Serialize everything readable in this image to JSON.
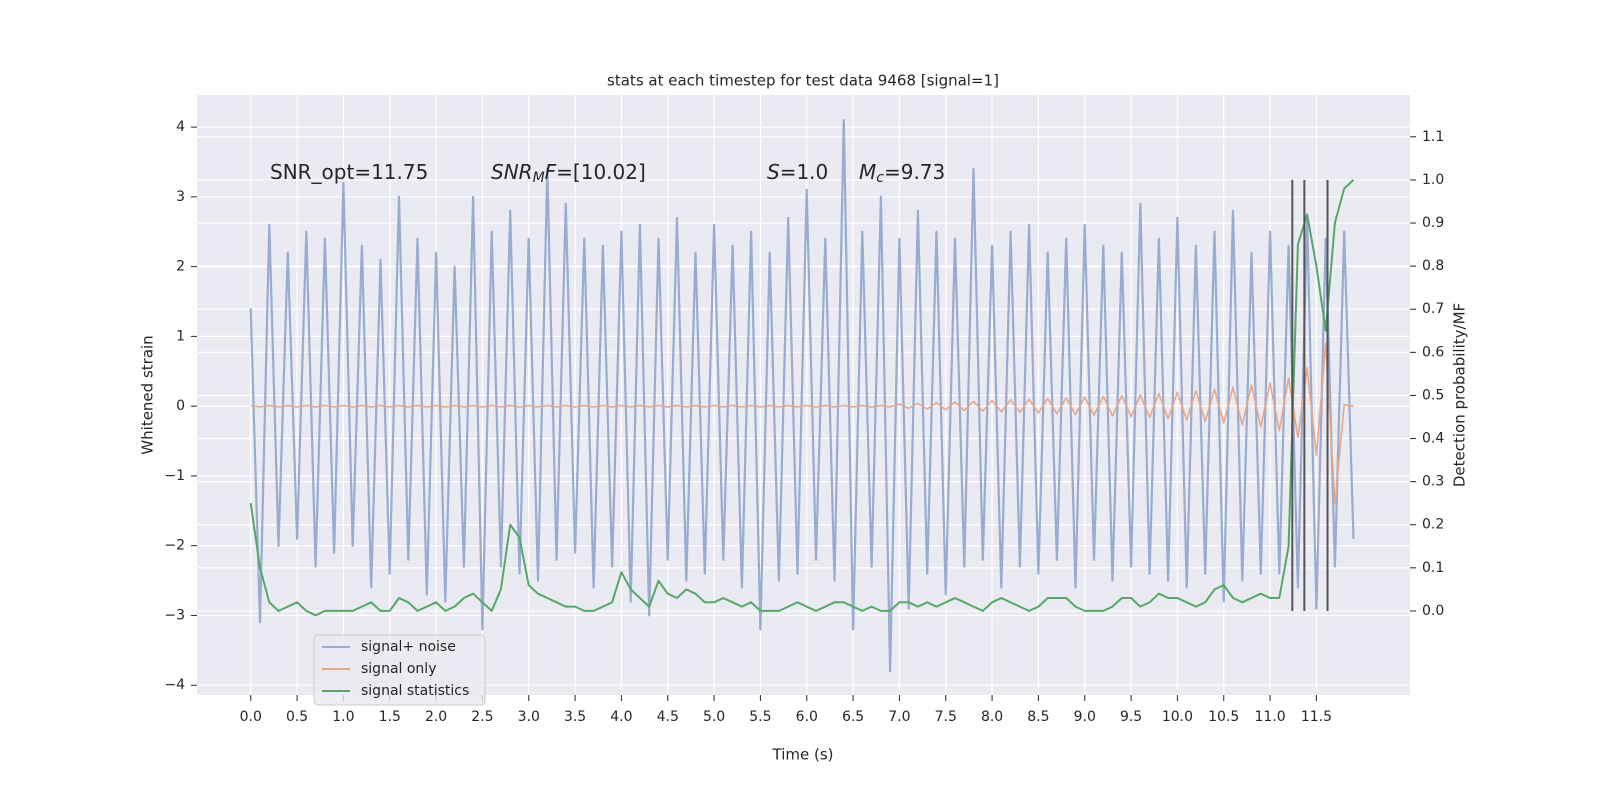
{
  "chart_data": {
    "type": "line",
    "title": "stats at each timestep for test data 9468 [signal=1]",
    "xlabel": "Time (s)",
    "ylabel": "Whitened strain",
    "y2label": "Detection probability/MF",
    "xlim": [
      -0.58,
      12.51
    ],
    "ylim": [
      -4.14,
      4.46
    ],
    "y2lim": [
      -0.195,
      1.197
    ],
    "grid": true,
    "legend": "lower left",
    "xticks": [
      {
        "value": 0,
        "label": "0.0"
      },
      0.5,
      {
        "value": 1,
        "label": "1.0"
      },
      1.5,
      {
        "value": 2,
        "label": "2.0"
      },
      2.5,
      {
        "value": 3,
        "label": "3.0"
      },
      3.5,
      {
        "value": 4,
        "label": "4.0"
      },
      4.5,
      {
        "value": 5,
        "label": "5.0"
      },
      5.5,
      {
        "value": 6,
        "label": "6.0"
      },
      6.5,
      {
        "value": 7,
        "label": "7.0"
      },
      7.5,
      {
        "value": 8,
        "label": "8.0"
      },
      8.5,
      {
        "value": 9,
        "label": "9.0"
      },
      9.5,
      {
        "value": 10,
        "label": "10.0"
      },
      10.5,
      {
        "value": 11,
        "label": "11.0"
      },
      11.5
    ],
    "yticks": [
      {
        "value": -4,
        "label": "−4"
      },
      {
        "value": -3,
        "label": "−3"
      },
      {
        "value": -2,
        "label": "−2"
      },
      {
        "value": -1,
        "label": "−1"
      },
      0,
      1,
      2,
      3,
      4
    ],
    "y2ticks": [
      {
        "value": 0,
        "label": "0.0"
      },
      0.1,
      0.2,
      0.3,
      0.4,
      0.5,
      0.6,
      0.7,
      0.8,
      0.9,
      {
        "value": 1,
        "label": "1.0"
      },
      1.1
    ],
    "annotations": [
      [
        {
          "text": "SNR_opt=11.75",
          "style": "normal"
        }
      ],
      [
        {
          "text": "SNR",
          "style": "italic"
        },
        {
          "text": "M",
          "style": "sub"
        },
        {
          "text": "F",
          "style": "italic"
        },
        {
          "text": "=[10.02]",
          "style": "normal"
        }
      ],
      [
        {
          "text": "S",
          "style": "italic"
        },
        {
          "text": "=1.0",
          "style": "normal"
        }
      ],
      [
        {
          "text": "M",
          "style": "italic"
        },
        {
          "text": "c",
          "style": "sub"
        },
        {
          "text": "=9.73",
          "style": "normal"
        }
      ]
    ],
    "vlines": [
      11.24,
      11.37,
      11.62
    ],
    "vline_color": "#555555",
    "x": [
      0.0,
      0.1,
      0.2,
      0.3,
      0.4,
      0.5,
      0.6,
      0.7,
      0.8,
      0.9,
      1.0,
      1.1,
      1.2,
      1.3,
      1.4,
      1.5,
      1.6,
      1.7,
      1.8,
      1.9,
      2.0,
      2.1,
      2.2,
      2.3,
      2.4,
      2.5,
      2.6,
      2.7,
      2.8,
      2.9,
      3.0,
      3.1,
      3.2,
      3.3,
      3.4,
      3.5,
      3.6,
      3.7,
      3.8,
      3.9,
      4.0,
      4.1,
      4.2,
      4.3,
      4.4,
      4.5,
      4.6,
      4.7,
      4.8,
      4.9,
      5.0,
      5.1,
      5.2,
      5.3,
      5.4,
      5.5,
      5.6,
      5.7,
      5.8,
      5.9,
      6.0,
      6.1,
      6.2,
      6.3,
      6.4,
      6.5,
      6.6,
      6.7,
      6.8,
      6.9,
      7.0,
      7.1,
      7.2,
      7.3,
      7.4,
      7.5,
      7.6,
      7.7,
      7.8,
      7.9,
      8.0,
      8.1,
      8.2,
      8.3,
      8.4,
      8.5,
      8.6,
      8.7,
      8.8,
      8.9,
      9.0,
      9.1,
      9.2,
      9.3,
      9.4,
      9.5,
      9.6,
      9.7,
      9.8,
      9.9,
      10.0,
      10.1,
      10.2,
      10.3,
      10.4,
      10.5,
      10.6,
      10.7,
      10.8,
      10.9,
      11.0,
      11.1,
      11.2,
      11.3,
      11.4,
      11.5,
      11.6,
      11.7,
      11.8,
      11.9
    ],
    "series": [
      {
        "name": "signal+ noise",
        "color": "#99abd0",
        "axis": "y",
        "values": [
          1.4,
          -3.1,
          2.6,
          -2.0,
          2.2,
          -1.9,
          2.5,
          -2.3,
          2.4,
          -2.1,
          3.2,
          -2.0,
          2.3,
          -2.6,
          2.1,
          -2.4,
          3.0,
          -2.2,
          2.4,
          -2.7,
          2.2,
          -2.8,
          2.0,
          -2.3,
          3.0,
          -3.2,
          2.5,
          -2.3,
          2.8,
          -2.4,
          2.4,
          -2.5,
          3.4,
          -2.2,
          2.9,
          -2.1,
          2.4,
          -2.6,
          2.3,
          -2.3,
          2.5,
          -2.8,
          2.6,
          -3.0,
          2.4,
          -2.2,
          2.7,
          -2.5,
          2.2,
          -2.4,
          2.6,
          -2.2,
          2.3,
          -2.6,
          2.5,
          -3.2,
          2.2,
          -2.5,
          2.7,
          -2.4,
          3.1,
          -2.2,
          2.4,
          -2.5,
          4.1,
          -3.2,
          2.5,
          -2.3,
          3.0,
          -3.8,
          2.4,
          -2.9,
          2.8,
          -2.4,
          2.5,
          -2.7,
          2.4,
          -2.3,
          3.4,
          -2.2,
          2.3,
          -2.6,
          2.5,
          -2.3,
          2.6,
          -2.4,
          2.2,
          -2.2,
          2.4,
          -2.6,
          2.6,
          -2.2,
          2.3,
          -2.5,
          2.2,
          -2.3,
          2.9,
          -2.4,
          2.4,
          -2.5,
          2.7,
          -2.6,
          2.3,
          -2.4,
          2.5,
          -2.8,
          2.8,
          -2.5,
          2.2,
          -2.4,
          2.5,
          -2.4,
          2.3,
          -2.6,
          2.7,
          -2.9,
          2.4,
          -2.3,
          2.5,
          -1.9
        ]
      },
      {
        "name": "signal only",
        "color": "#e8a888",
        "axis": "y",
        "values": [
          0.01,
          -0.01,
          0.01,
          -0.01,
          0.01,
          -0.01,
          0.01,
          -0.01,
          0.01,
          -0.01,
          0.01,
          -0.01,
          0.01,
          -0.01,
          0.01,
          -0.01,
          0.01,
          -0.01,
          0.01,
          -0.01,
          0.01,
          -0.01,
          0.01,
          -0.01,
          0.01,
          -0.01,
          0.01,
          -0.01,
          0.01,
          -0.01,
          0.01,
          -0.01,
          0.01,
          -0.01,
          0.01,
          -0.01,
          0.01,
          -0.01,
          0.01,
          -0.01,
          0.01,
          -0.01,
          0.01,
          -0.01,
          0.01,
          -0.01,
          0.01,
          -0.01,
          0.01,
          -0.01,
          0.01,
          -0.01,
          0.01,
          -0.01,
          0.01,
          -0.01,
          0.01,
          -0.01,
          0.01,
          -0.01,
          0.01,
          -0.01,
          0.01,
          -0.01,
          0.01,
          -0.01,
          0.01,
          -0.01,
          0.01,
          -0.01,
          0.03,
          -0.03,
          0.04,
          -0.04,
          0.05,
          -0.05,
          0.06,
          -0.06,
          0.07,
          -0.07,
          0.08,
          -0.08,
          0.09,
          -0.09,
          0.1,
          -0.1,
          0.11,
          -0.11,
          0.12,
          -0.12,
          0.13,
          -0.13,
          0.14,
          -0.14,
          0.15,
          -0.15,
          0.16,
          -0.16,
          0.18,
          -0.18,
          0.2,
          -0.2,
          0.22,
          -0.22,
          0.24,
          -0.24,
          0.27,
          -0.27,
          0.3,
          -0.3,
          0.33,
          -0.35,
          0.4,
          -0.45,
          0.55,
          -0.7,
          0.9,
          -1.4,
          0.02,
          0.0
        ]
      },
      {
        "name": "signal statistics",
        "color": "#55a868",
        "axis": "y2",
        "values": [
          0.25,
          0.1,
          0.02,
          0.0,
          0.01,
          0.02,
          0.0,
          -0.01,
          0.0,
          0.0,
          0.0,
          0.0,
          0.01,
          0.02,
          0.0,
          0.0,
          0.03,
          0.02,
          0.0,
          0.01,
          0.02,
          0.0,
          0.01,
          0.03,
          0.04,
          0.02,
          0.0,
          0.05,
          0.2,
          0.17,
          0.06,
          0.04,
          0.03,
          0.02,
          0.01,
          0.01,
          0.0,
          0.0,
          0.01,
          0.02,
          0.09,
          0.05,
          0.03,
          0.01,
          0.07,
          0.04,
          0.03,
          0.05,
          0.04,
          0.02,
          0.02,
          0.03,
          0.02,
          0.01,
          0.02,
          0.0,
          0.0,
          0.0,
          0.01,
          0.02,
          0.01,
          0.0,
          0.01,
          0.02,
          0.02,
          0.01,
          0.0,
          0.01,
          0.0,
          0.0,
          0.02,
          0.02,
          0.01,
          0.02,
          0.01,
          0.02,
          0.03,
          0.02,
          0.01,
          0.0,
          0.02,
          0.03,
          0.02,
          0.01,
          0.0,
          0.01,
          0.03,
          0.03,
          0.03,
          0.01,
          0.0,
          0.0,
          0.0,
          0.01,
          0.03,
          0.03,
          0.01,
          0.02,
          0.04,
          0.03,
          0.03,
          0.02,
          0.01,
          0.02,
          0.05,
          0.06,
          0.03,
          0.02,
          0.03,
          0.04,
          0.03,
          0.03,
          0.15,
          0.85,
          0.92,
          0.8,
          0.65,
          0.9,
          0.98,
          1.0
        ]
      }
    ]
  }
}
